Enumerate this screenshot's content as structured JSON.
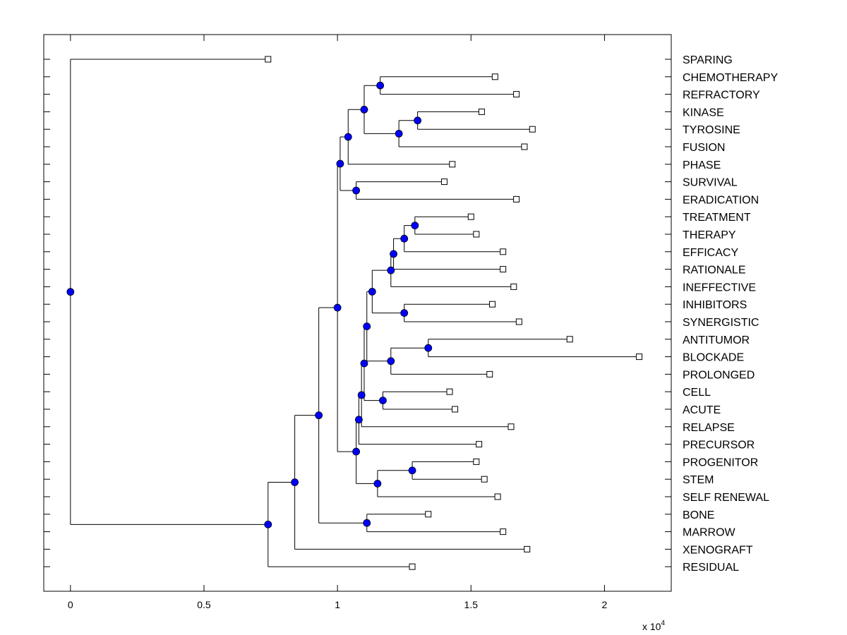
{
  "chart_data": {
    "type": "dendrogram",
    "title": "",
    "xlabel": "",
    "ylabel": "",
    "x_multiplier_label": "x 10",
    "x_multiplier_exponent": "4",
    "xlim": [
      -0.1,
      2.25
    ],
    "x_ticks": [
      0,
      0.5,
      1,
      1.5,
      2
    ],
    "x_tick_labels": [
      "0",
      "0.5",
      "1",
      "1.5",
      "2"
    ],
    "leaf_labels": [
      "SPARING",
      "CHEMOTHERAPY",
      "REFRACTORY",
      "KINASE",
      "TYROSINE",
      "FUSION",
      "PHASE",
      "SURVIVAL",
      "ERADICATION",
      "TREATMENT",
      "THERAPY",
      "EFFICACY",
      "RATIONALE",
      "INEFFECTIVE",
      "INHIBITORS",
      "SYNERGISTIC",
      "ANTITUMOR",
      "BLOCKADE",
      "PROLONGED",
      "CELL",
      "ACUTE",
      "RELAPSE",
      "PRECURSOR",
      "PROGENITOR",
      "STEM",
      "SELF RENEWAL",
      "BONE",
      "MARROW",
      "XENOGRAFT",
      "RESIDUAL"
    ],
    "leaf_values": [
      0.74,
      1.59,
      1.67,
      1.54,
      1.73,
      1.7,
      1.43,
      1.4,
      1.67,
      1.5,
      1.52,
      1.62,
      1.62,
      1.66,
      1.58,
      1.68,
      1.87,
      2.13,
      1.57,
      1.42,
      1.44,
      1.65,
      1.53,
      1.52,
      1.55,
      1.6,
      1.34,
      1.62,
      1.71,
      1.28
    ],
    "root": "n0",
    "nodes": {
      "n0": {
        "value": 0.0,
        "left": 0,
        "right": "n1"
      },
      "n1": {
        "value": 0.74,
        "left": "n2",
        "right": 29
      },
      "n2": {
        "value": 0.84,
        "left": "n3",
        "right": 28
      },
      "n3": {
        "value": 0.93,
        "left": "n4",
        "right": "n26"
      },
      "n26": {
        "value": 1.11,
        "left": 26,
        "right": 27
      },
      "n4": {
        "value": 1.0,
        "left": "n5",
        "right": "n12"
      },
      "n5": {
        "value": 1.01,
        "left": "n6",
        "right": "n11"
      },
      "n11": {
        "value": 1.07,
        "left": 7,
        "right": 8
      },
      "n6": {
        "value": 1.04,
        "left": "n7",
        "right": 6
      },
      "n7": {
        "value": 1.1,
        "left": "n8",
        "right": "n9"
      },
      "n8": {
        "value": 1.16,
        "left": 1,
        "right": 2
      },
      "n9": {
        "value": 1.23,
        "left": "n10",
        "right": 5
      },
      "n10": {
        "value": 1.3,
        "left": 3,
        "right": 4
      },
      "n12": {
        "value": 1.07,
        "left": "n13",
        "right": "n23"
      },
      "n23": {
        "value": 1.15,
        "left": "n24",
        "right": 25
      },
      "n24": {
        "value": 1.28,
        "left": 23,
        "right": 24
      },
      "n13": {
        "value": 1.08,
        "left": "n14",
        "right": 22
      },
      "n14": {
        "value": 1.09,
        "left": "n15",
        "right": 21
      },
      "n15": {
        "value": 1.1,
        "left": "n16",
        "right": "n22"
      },
      "n22": {
        "value": 1.17,
        "left": 19,
        "right": 20
      },
      "n16": {
        "value": 1.11,
        "left": "n17",
        "right": "n20"
      },
      "n20": {
        "value": 1.2,
        "left": "n21",
        "right": 18
      },
      "n21": {
        "value": 1.34,
        "left": 16,
        "right": 17
      },
      "n17": {
        "value": 1.13,
        "left": "n18",
        "right": "n19"
      },
      "n19": {
        "value": 1.25,
        "left": 14,
        "right": 15
      },
      "n18": {
        "value": 1.2,
        "left": "n25",
        "right": 13
      },
      "n25": {
        "value": 1.21,
        "left": "n27",
        "right": 12
      },
      "n27": {
        "value": 1.25,
        "left": "n28",
        "right": 11
      },
      "n28": {
        "value": 1.29,
        "left": 9,
        "right": 10
      }
    }
  }
}
